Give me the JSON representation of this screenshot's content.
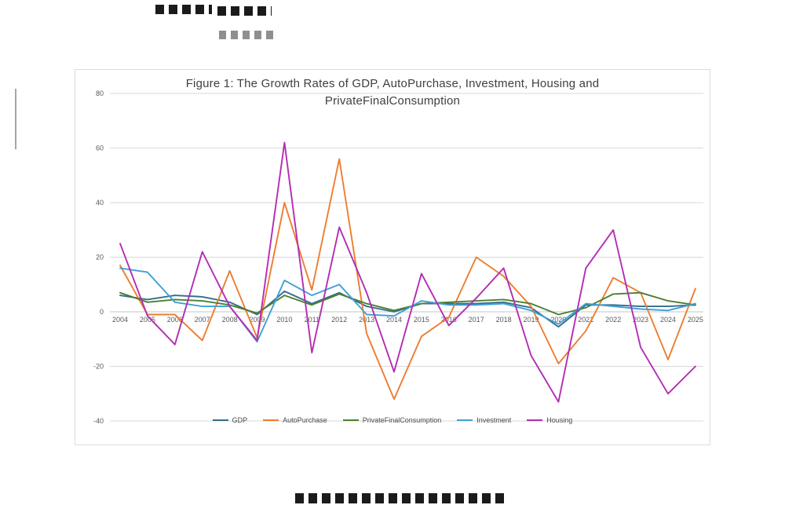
{
  "chart": {
    "title_line1": "Figure 1: The Growth Rates of GDP, AutoPurchase, Investment, Housing and",
    "title_line2": "PrivateFinalConsumption",
    "colors": {
      "grid": "#d9d9d9",
      "axis": "#c6c6c6",
      "tick_text": "#595959",
      "title_text": "#3f3f3f"
    }
  },
  "chart_data": {
    "type": "line",
    "title": "Figure 1: The Growth Rates of GDP, AutoPurchase, Investment, Housing and PrivateFinalConsumption",
    "xlabel": "",
    "ylabel": "",
    "ylim": [
      -40,
      80
    ],
    "yticks": [
      80,
      60,
      40,
      20,
      0,
      -20,
      -40
    ],
    "grid": true,
    "legend_position": "bottom",
    "x": [
      2004,
      2005,
      2006,
      2007,
      2008,
      2009,
      2010,
      2011,
      2012,
      2013,
      2014,
      2015,
      2016,
      2017,
      2018,
      2019,
      2020,
      2021,
      2022,
      2023,
      2024,
      2025
    ],
    "series": [
      {
        "name": "GDP",
        "color": "#336e8e",
        "values": [
          6,
          4.5,
          6,
          5.5,
          3.5,
          -1,
          7.5,
          3,
          7,
          2,
          0,
          3,
          3,
          3,
          3.5,
          1.5,
          -5.5,
          2.5,
          2.5,
          2,
          2,
          2.5
        ]
      },
      {
        "name": "AutoPurchase",
        "color": "#ED7D31",
        "values": [
          17,
          -1,
          -1,
          -10.5,
          15,
          -9.5,
          40,
          8,
          56,
          -8,
          -32,
          -9,
          -2,
          20,
          13,
          2,
          -19,
          -7,
          12.5,
          7,
          -17.5,
          8.5
        ]
      },
      {
        "name": "PrivateFinalConsumption",
        "color": "#4e7e32",
        "values": [
          7,
          3.5,
          4.5,
          4,
          2.5,
          -0.5,
          6,
          2.5,
          6.5,
          3,
          0.5,
          3,
          3.5,
          4,
          4.5,
          3,
          -1,
          1.5,
          6.5,
          7,
          4,
          2.5
        ]
      },
      {
        "name": "Investment",
        "color": "#41a0d8",
        "values": [
          16,
          14.5,
          3.5,
          2,
          2,
          -11,
          11.5,
          6,
          10,
          -1,
          -1.5,
          4,
          2.5,
          2.5,
          3,
          0.5,
          -4.5,
          3,
          2,
          1,
          0.5,
          3
        ]
      },
      {
        "name": "Housing",
        "color": "#b32db3",
        "values": [
          25,
          -1.5,
          -12,
          22,
          2,
          -10.5,
          62,
          -15,
          31,
          7,
          -22,
          14,
          -5,
          5,
          16,
          -16,
          -33,
          16,
          30,
          -13,
          -30,
          -20
        ]
      }
    ]
  }
}
